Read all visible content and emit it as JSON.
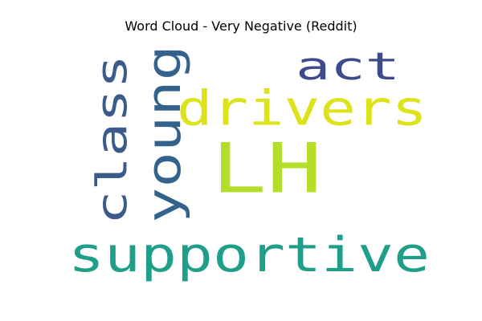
{
  "chart_data": {
    "type": "wordcloud",
    "title": "Word Cloud - Very Negative (Reddit)",
    "words": [
      {
        "text": "LH",
        "color": "#b5de2b",
        "orientation": "horizontal"
      },
      {
        "text": "supportive",
        "color": "#1f9e89",
        "orientation": "horizontal"
      },
      {
        "text": "drivers",
        "color": "#dde318",
        "orientation": "horizontal"
      },
      {
        "text": "act",
        "color": "#3e4a89",
        "orientation": "horizontal"
      },
      {
        "text": "young",
        "color": "#33638d",
        "orientation": "vertical"
      },
      {
        "text": "class",
        "color": "#3b5b8a",
        "orientation": "vertical"
      }
    ]
  }
}
